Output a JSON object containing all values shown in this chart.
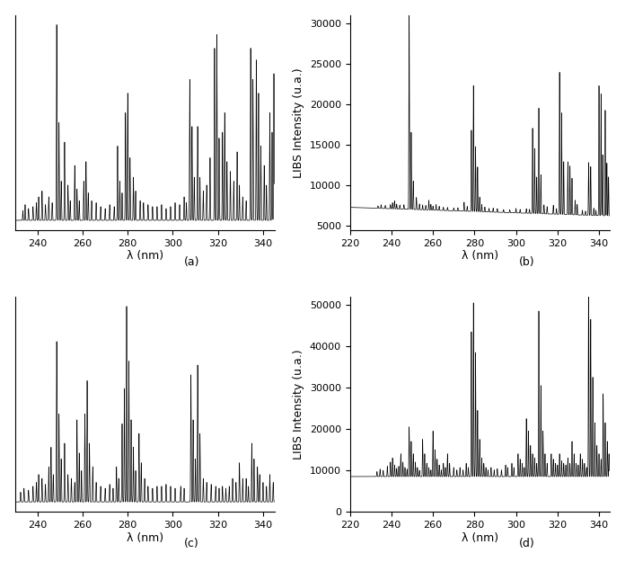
{
  "subplots": [
    {
      "label": "(a)",
      "xlim": [
        230,
        345
      ],
      "has_ylabel": false,
      "hide_yticks": true,
      "xticks": [
        240,
        260,
        280,
        300,
        320,
        340
      ],
      "baseline": 0,
      "peaks": [
        [
          233.5,
          0.05
        ],
        [
          234.5,
          0.08
        ],
        [
          236.0,
          0.06
        ],
        [
          238.0,
          0.07
        ],
        [
          239.5,
          0.09
        ],
        [
          240.5,
          0.12
        ],
        [
          242.0,
          0.15
        ],
        [
          243.5,
          0.08
        ],
        [
          245.0,
          0.12
        ],
        [
          246.5,
          0.09
        ],
        [
          248.5,
          1.0
        ],
        [
          249.5,
          0.5
        ],
        [
          250.5,
          0.2
        ],
        [
          252.0,
          0.4
        ],
        [
          253.5,
          0.18
        ],
        [
          254.5,
          0.1
        ],
        [
          256.5,
          0.28
        ],
        [
          257.5,
          0.16
        ],
        [
          258.5,
          0.1
        ],
        [
          260.5,
          0.2
        ],
        [
          261.5,
          0.3
        ],
        [
          262.5,
          0.14
        ],
        [
          264.0,
          0.1
        ],
        [
          266.0,
          0.09
        ],
        [
          268.0,
          0.07
        ],
        [
          270.0,
          0.06
        ],
        [
          272.0,
          0.08
        ],
        [
          274.0,
          0.07
        ],
        [
          275.5,
          0.38
        ],
        [
          276.5,
          0.2
        ],
        [
          277.5,
          0.14
        ],
        [
          279.0,
          0.55
        ],
        [
          280.0,
          0.65
        ],
        [
          281.0,
          0.32
        ],
        [
          282.5,
          0.22
        ],
        [
          283.5,
          0.15
        ],
        [
          285.5,
          0.1
        ],
        [
          287.0,
          0.09
        ],
        [
          289.0,
          0.08
        ],
        [
          291.0,
          0.07
        ],
        [
          293.0,
          0.07
        ],
        [
          295.0,
          0.08
        ],
        [
          297.0,
          0.06
        ],
        [
          299.0,
          0.07
        ],
        [
          301.0,
          0.09
        ],
        [
          303.0,
          0.08
        ],
        [
          305.0,
          0.12
        ],
        [
          306.0,
          0.09
        ],
        [
          307.5,
          0.72
        ],
        [
          308.5,
          0.48
        ],
        [
          309.5,
          0.22
        ],
        [
          311.0,
          0.48
        ],
        [
          312.0,
          0.22
        ],
        [
          313.5,
          0.15
        ],
        [
          315.0,
          0.18
        ],
        [
          316.5,
          0.32
        ],
        [
          318.5,
          0.88
        ],
        [
          319.5,
          0.95
        ],
        [
          320.5,
          0.42
        ],
        [
          322.0,
          0.45
        ],
        [
          323.0,
          0.55
        ],
        [
          324.0,
          0.3
        ],
        [
          325.5,
          0.25
        ],
        [
          327.0,
          0.2
        ],
        [
          328.5,
          0.35
        ],
        [
          329.5,
          0.18
        ],
        [
          331.0,
          0.12
        ],
        [
          332.5,
          0.1
        ],
        [
          334.5,
          0.88
        ],
        [
          335.5,
          0.72
        ],
        [
          337.0,
          0.82
        ],
        [
          338.0,
          0.65
        ],
        [
          339.0,
          0.38
        ],
        [
          340.5,
          0.28
        ],
        [
          341.5,
          0.18
        ],
        [
          343.0,
          0.55
        ],
        [
          344.0,
          0.45
        ],
        [
          344.8,
          0.75
        ]
      ]
    },
    {
      "label": "(b)",
      "xlim": [
        220,
        345
      ],
      "ylim": [
        4500,
        31000
      ],
      "yticks": [
        5000,
        10000,
        15000,
        20000,
        25000,
        30000
      ],
      "has_ylabel": true,
      "hide_yticks": false,
      "xticks": [
        220,
        240,
        260,
        280,
        300,
        320,
        340
      ],
      "baseline": 7300,
      "baseline_slope": -8.5,
      "peaks": [
        [
          233.5,
          300
        ],
        [
          235.0,
          450
        ],
        [
          237.0,
          380
        ],
        [
          239.5,
          500
        ],
        [
          240.5,
          750
        ],
        [
          241.5,
          1000
        ],
        [
          242.5,
          600
        ],
        [
          244.0,
          500
        ],
        [
          246.0,
          550
        ],
        [
          248.5,
          24500
        ],
        [
          249.5,
          9500
        ],
        [
          250.5,
          3500
        ],
        [
          252.0,
          1500
        ],
        [
          253.5,
          700
        ],
        [
          255.0,
          600
        ],
        [
          256.5,
          550
        ],
        [
          258.0,
          1200
        ],
        [
          259.0,
          700
        ],
        [
          260.0,
          500
        ],
        [
          261.5,
          700
        ],
        [
          263.0,
          500
        ],
        [
          265.0,
          400
        ],
        [
          267.0,
          400
        ],
        [
          270.0,
          350
        ],
        [
          272.0,
          400
        ],
        [
          275.0,
          1100
        ],
        [
          276.5,
          600
        ],
        [
          278.5,
          10000
        ],
        [
          279.5,
          15500
        ],
        [
          280.5,
          8000
        ],
        [
          281.5,
          5500
        ],
        [
          282.5,
          1800
        ],
        [
          283.5,
          900
        ],
        [
          285.0,
          600
        ],
        [
          287.0,
          450
        ],
        [
          289.0,
          500
        ],
        [
          291.0,
          450
        ],
        [
          294.0,
          350
        ],
        [
          297.0,
          350
        ],
        [
          300.0,
          550
        ],
        [
          302.0,
          450
        ],
        [
          305.0,
          550
        ],
        [
          306.5,
          500
        ],
        [
          308.0,
          10500
        ],
        [
          309.0,
          8000
        ],
        [
          310.0,
          4500
        ],
        [
          311.0,
          13000
        ],
        [
          312.0,
          4800
        ],
        [
          313.5,
          1100
        ],
        [
          315.0,
          900
        ],
        [
          318.0,
          1100
        ],
        [
          319.5,
          700
        ],
        [
          321.0,
          17500
        ],
        [
          322.0,
          12500
        ],
        [
          323.0,
          6500
        ],
        [
          325.0,
          6500
        ],
        [
          326.0,
          6000
        ],
        [
          327.0,
          4500
        ],
        [
          328.5,
          1800
        ],
        [
          329.5,
          1300
        ],
        [
          332.0,
          600
        ],
        [
          333.5,
          500
        ],
        [
          335.0,
          6500
        ],
        [
          336.0,
          6000
        ],
        [
          337.5,
          900
        ],
        [
          338.5,
          650
        ],
        [
          340.0,
          16000
        ],
        [
          341.0,
          15000
        ],
        [
          341.8,
          7500
        ],
        [
          343.0,
          13000
        ],
        [
          343.8,
          6500
        ],
        [
          344.6,
          4800
        ]
      ]
    },
    {
      "label": "(c)",
      "xlim": [
        230,
        345
      ],
      "has_ylabel": false,
      "hide_yticks": true,
      "xticks": [
        240,
        260,
        280,
        300,
        320,
        340
      ],
      "baseline": 0,
      "peaks": [
        [
          232.5,
          0.05
        ],
        [
          234.0,
          0.07
        ],
        [
          236.0,
          0.06
        ],
        [
          238.0,
          0.08
        ],
        [
          239.5,
          0.1
        ],
        [
          240.5,
          0.14
        ],
        [
          242.0,
          0.12
        ],
        [
          243.5,
          0.09
        ],
        [
          245.0,
          0.18
        ],
        [
          246.0,
          0.28
        ],
        [
          247.0,
          0.14
        ],
        [
          248.5,
          0.82
        ],
        [
          249.5,
          0.45
        ],
        [
          250.5,
          0.22
        ],
        [
          252.0,
          0.3
        ],
        [
          253.5,
          0.14
        ],
        [
          255.0,
          0.12
        ],
        [
          256.5,
          0.1
        ],
        [
          257.5,
          0.42
        ],
        [
          258.5,
          0.25
        ],
        [
          259.5,
          0.16
        ],
        [
          261.0,
          0.45
        ],
        [
          262.0,
          0.62
        ],
        [
          263.0,
          0.3
        ],
        [
          264.5,
          0.18
        ],
        [
          266.0,
          0.1
        ],
        [
          268.0,
          0.08
        ],
        [
          270.0,
          0.07
        ],
        [
          272.0,
          0.09
        ],
        [
          273.5,
          0.07
        ],
        [
          275.0,
          0.18
        ],
        [
          276.0,
          0.12
        ],
        [
          277.5,
          0.4
        ],
        [
          278.5,
          0.58
        ],
        [
          279.5,
          1.0
        ],
        [
          280.5,
          0.72
        ],
        [
          281.5,
          0.42
        ],
        [
          282.5,
          0.28
        ],
        [
          283.5,
          0.16
        ],
        [
          285.0,
          0.35
        ],
        [
          286.0,
          0.2
        ],
        [
          287.5,
          0.12
        ],
        [
          289.0,
          0.08
        ],
        [
          291.0,
          0.07
        ],
        [
          293.0,
          0.08
        ],
        [
          295.0,
          0.08
        ],
        [
          297.0,
          0.09
        ],
        [
          299.0,
          0.08
        ],
        [
          301.0,
          0.07
        ],
        [
          303.5,
          0.08
        ],
        [
          305.0,
          0.07
        ],
        [
          308.0,
          0.65
        ],
        [
          309.0,
          0.42
        ],
        [
          310.0,
          0.22
        ],
        [
          311.0,
          0.7
        ],
        [
          312.0,
          0.35
        ],
        [
          313.5,
          0.12
        ],
        [
          315.0,
          0.1
        ],
        [
          317.0,
          0.09
        ],
        [
          319.0,
          0.08
        ],
        [
          320.5,
          0.07
        ],
        [
          322.0,
          0.08
        ],
        [
          323.5,
          0.07
        ],
        [
          325.0,
          0.08
        ],
        [
          326.5,
          0.12
        ],
        [
          328.0,
          0.1
        ],
        [
          329.5,
          0.2
        ],
        [
          331.0,
          0.12
        ],
        [
          332.5,
          0.12
        ],
        [
          333.5,
          0.08
        ],
        [
          335.0,
          0.3
        ],
        [
          336.0,
          0.22
        ],
        [
          337.5,
          0.18
        ],
        [
          338.5,
          0.14
        ],
        [
          340.0,
          0.1
        ],
        [
          341.5,
          0.08
        ],
        [
          343.0,
          0.14
        ],
        [
          344.5,
          0.1
        ]
      ]
    },
    {
      "label": "(d)",
      "xlim": [
        220,
        345
      ],
      "ylim": [
        0,
        52000
      ],
      "yticks": [
        0,
        10000,
        20000,
        30000,
        40000,
        50000
      ],
      "has_ylabel": true,
      "hide_yticks": false,
      "xticks": [
        220,
        240,
        260,
        280,
        300,
        320,
        340
      ],
      "baseline": 8500,
      "baseline_slope": 0,
      "peaks": [
        [
          233.0,
          1200
        ],
        [
          234.5,
          1800
        ],
        [
          236.0,
          1500
        ],
        [
          238.0,
          2500
        ],
        [
          239.5,
          3500
        ],
        [
          240.5,
          4500
        ],
        [
          241.5,
          2800
        ],
        [
          242.5,
          2000
        ],
        [
          243.5,
          2500
        ],
        [
          244.5,
          5500
        ],
        [
          245.5,
          3500
        ],
        [
          246.5,
          2200
        ],
        [
          247.5,
          1800
        ],
        [
          248.5,
          12000
        ],
        [
          249.5,
          8500
        ],
        [
          250.5,
          5500
        ],
        [
          251.5,
          3500
        ],
        [
          252.5,
          2200
        ],
        [
          253.5,
          1500
        ],
        [
          255.0,
          9000
        ],
        [
          256.0,
          5500
        ],
        [
          257.0,
          3200
        ],
        [
          258.0,
          2200
        ],
        [
          259.0,
          1600
        ],
        [
          260.0,
          11000
        ],
        [
          261.0,
          6500
        ],
        [
          262.0,
          4200
        ],
        [
          263.0,
          2800
        ],
        [
          264.0,
          1600
        ],
        [
          265.0,
          3200
        ],
        [
          266.0,
          2200
        ],
        [
          267.0,
          5500
        ],
        [
          268.0,
          3200
        ],
        [
          270.0,
          2200
        ],
        [
          271.5,
          1600
        ],
        [
          273.0,
          2200
        ],
        [
          274.5,
          1600
        ],
        [
          276.0,
          3200
        ],
        [
          277.0,
          2200
        ],
        [
          278.5,
          35000
        ],
        [
          279.5,
          42000
        ],
        [
          280.5,
          30000
        ],
        [
          281.5,
          16000
        ],
        [
          282.5,
          9000
        ],
        [
          283.5,
          4500
        ],
        [
          284.5,
          3200
        ],
        [
          285.5,
          2200
        ],
        [
          286.5,
          1600
        ],
        [
          288.0,
          2200
        ],
        [
          289.5,
          1600
        ],
        [
          291.0,
          1900
        ],
        [
          293.0,
          1600
        ],
        [
          295.0,
          2800
        ],
        [
          296.0,
          2200
        ],
        [
          298.0,
          3200
        ],
        [
          299.0,
          2200
        ],
        [
          301.0,
          5500
        ],
        [
          302.0,
          4200
        ],
        [
          303.0,
          3200
        ],
        [
          304.0,
          2200
        ],
        [
          305.0,
          14000
        ],
        [
          306.0,
          11000
        ],
        [
          307.0,
          7500
        ],
        [
          308.0,
          5500
        ],
        [
          309.0,
          4500
        ],
        [
          310.0,
          3200
        ],
        [
          311.0,
          40000
        ],
        [
          312.0,
          22000
        ],
        [
          313.0,
          11000
        ],
        [
          314.0,
          5500
        ],
        [
          315.0,
          3200
        ],
        [
          317.0,
          5500
        ],
        [
          318.0,
          4200
        ],
        [
          319.0,
          3200
        ],
        [
          320.0,
          2800
        ],
        [
          321.0,
          5500
        ],
        [
          322.0,
          3800
        ],
        [
          323.0,
          3200
        ],
        [
          324.0,
          2800
        ],
        [
          325.0,
          4500
        ],
        [
          326.0,
          3200
        ],
        [
          327.0,
          8500
        ],
        [
          328.0,
          5500
        ],
        [
          329.0,
          3200
        ],
        [
          330.0,
          2800
        ],
        [
          331.0,
          5500
        ],
        [
          332.0,
          4200
        ],
        [
          333.0,
          3200
        ],
        [
          334.0,
          2200
        ],
        [
          335.0,
          50000
        ],
        [
          336.0,
          38000
        ],
        [
          337.0,
          24000
        ],
        [
          338.0,
          13000
        ],
        [
          339.0,
          7500
        ],
        [
          340.0,
          5500
        ],
        [
          341.0,
          4200
        ],
        [
          342.0,
          20000
        ],
        [
          343.0,
          13000
        ],
        [
          344.0,
          8500
        ],
        [
          344.8,
          5500
        ]
      ]
    }
  ],
  "ylabel": "LIBS Intensity (u.a.)",
  "xlabel": "λ (nm)",
  "line_color": "#000000",
  "line_width": 0.5,
  "tick_fontsize": 8,
  "label_fontsize": 9,
  "background_color": "#ffffff",
  "fig_width": 6.96,
  "fig_height": 6.25
}
